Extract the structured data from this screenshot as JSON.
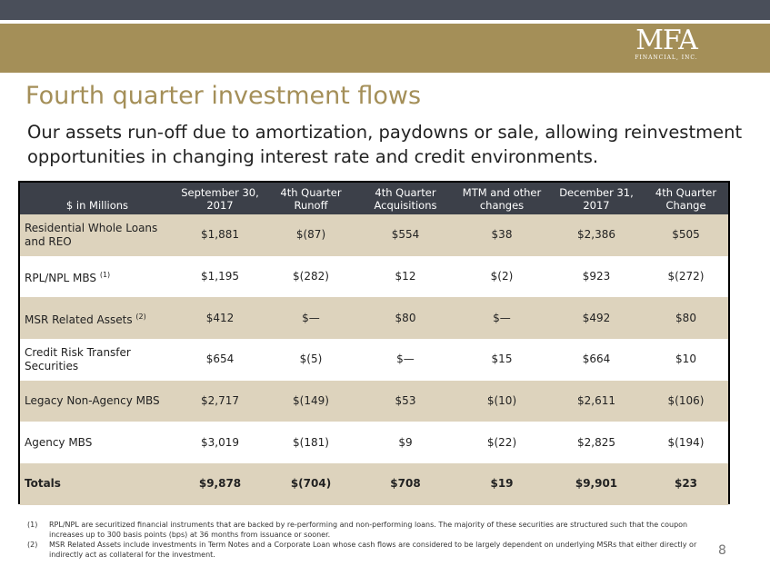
{
  "logo": {
    "mark": "MFA",
    "sub": "FINANCIAL, INC."
  },
  "title": "Fourth quarter investment flows",
  "subtitle": "Our assets run-off due to amortization, paydowns or sale, allowing reinvestment opportunities in changing interest rate and credit environments.",
  "table": {
    "headers": [
      "$ in Millions",
      "September 30, 2017",
      "4th Quarter Runoff",
      "4th Quarter Acquisitions",
      "MTM and other changes",
      "December 31, 2017",
      "4th Quarter Change"
    ],
    "rows": [
      {
        "label": "Residential Whole Loans and REO",
        "sup": "",
        "cells": [
          "$1,881",
          "$(87)",
          "$554",
          "$38",
          "$2,386",
          "$505"
        ]
      },
      {
        "label": "RPL/NPL MBS",
        "sup": "(1)",
        "cells": [
          "$1,195",
          "$(282)",
          "$12",
          "$(2)",
          "$923",
          "$(272)"
        ]
      },
      {
        "label": "MSR Related Assets",
        "sup": "(2)",
        "cells": [
          "$412",
          "$—",
          "$80",
          "$—",
          "$492",
          "$80"
        ]
      },
      {
        "label": "Credit Risk Transfer Securities",
        "sup": "",
        "cells": [
          "$654",
          "$(5)",
          "$—",
          "$15",
          "$664",
          "$10"
        ]
      },
      {
        "label": "Legacy Non-Agency MBS",
        "sup": "",
        "cells": [
          "$2,717",
          "$(149)",
          "$53",
          "$(10)",
          "$2,611",
          "$(106)"
        ]
      },
      {
        "label": "Agency MBS",
        "sup": "",
        "cells": [
          "$3,019",
          "$(181)",
          "$9",
          "$(22)",
          "$2,825",
          "$(194)"
        ]
      },
      {
        "label": "Totals",
        "sup": "",
        "cells": [
          "$9,878",
          "$(704)",
          "$708",
          "$19",
          "$9,901",
          "$23"
        ]
      }
    ]
  },
  "footnotes": [
    {
      "num": "(1)",
      "text": "RPL/NPL are securitized financial instruments that are backed by re-performing and non-performing loans.  The majority of these securities are structured such that the coupon increases up to 300 basis points (bps) at 36 months from issuance or sooner."
    },
    {
      "num": "(2)",
      "text": "MSR Related Assets include investments in Term Notes and a Corporate Loan whose cash flows are considered to be largely dependent on underlying MSRs that either directly or indirectly act as collateral for the investment."
    }
  ],
  "page_number": "8",
  "colors": {
    "brand_gold": "#a48f58",
    "header_dark": "#3c4049",
    "row_shade": "#ddd3bd",
    "top_band": "#4a4f5a"
  }
}
